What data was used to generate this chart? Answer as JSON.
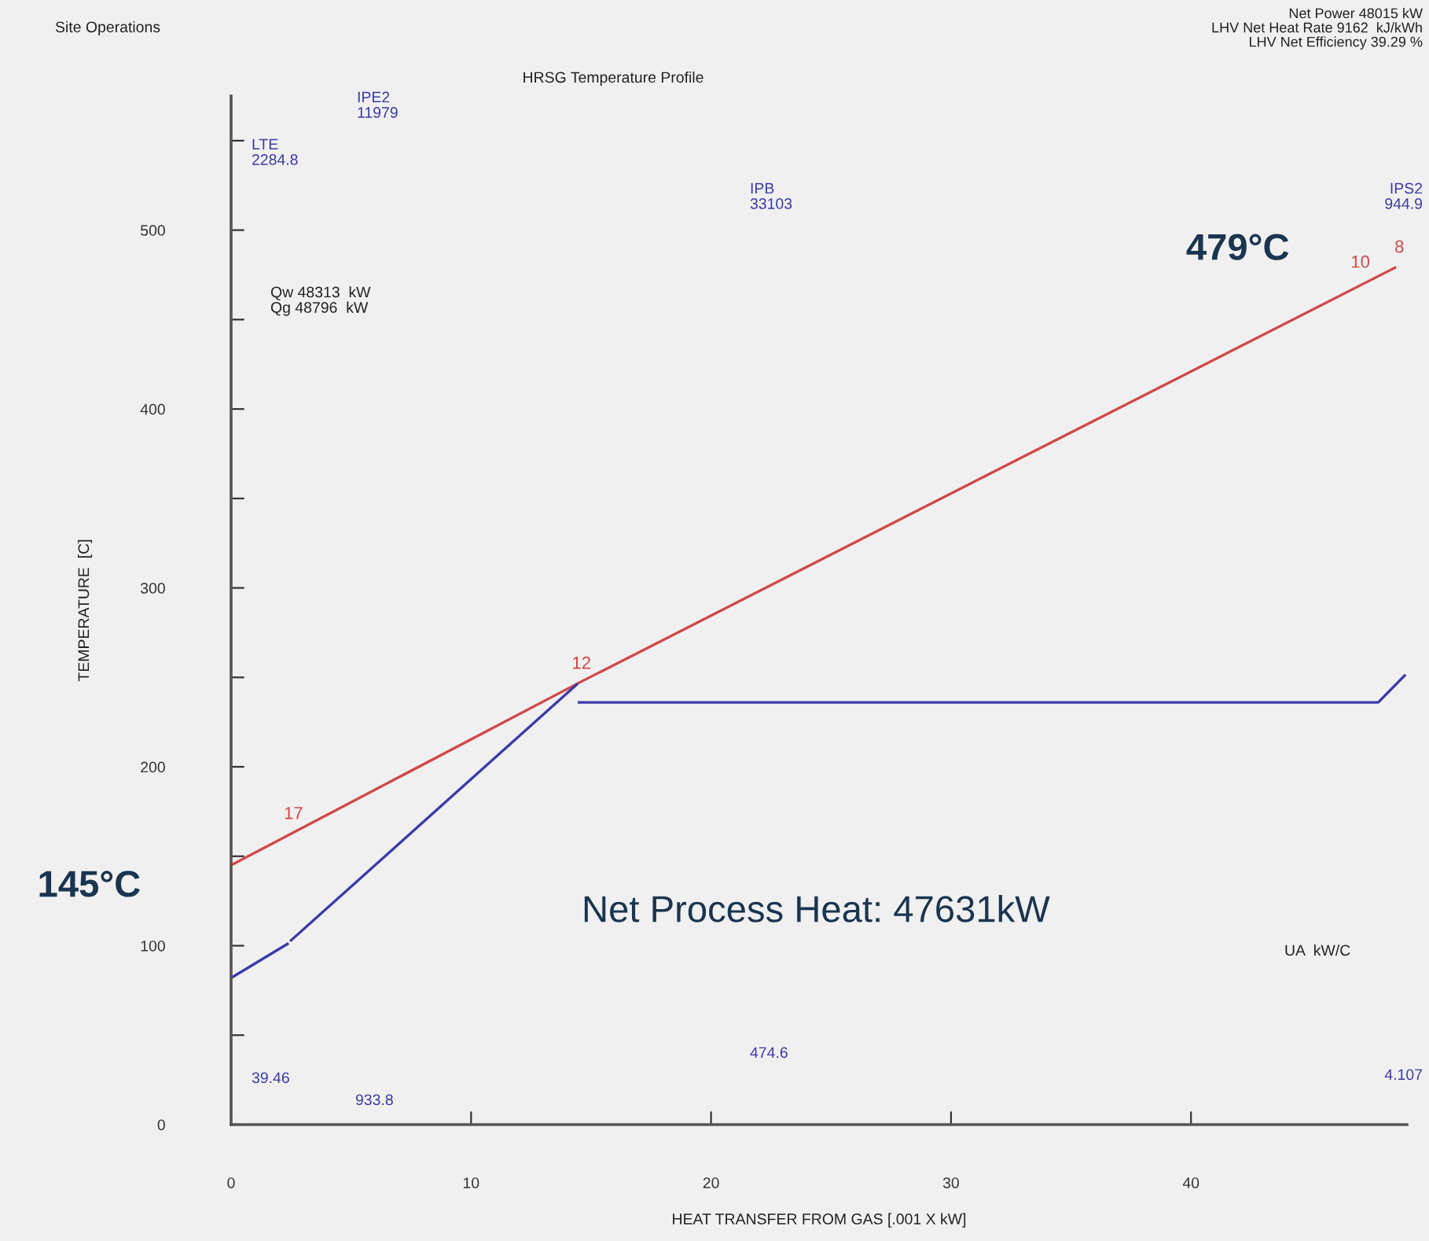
{
  "chart_data": {
    "type": "line",
    "title": "HRSG Temperature Profile",
    "xlabel": "HEAT TRANSFER FROM GAS [.001 X kW]",
    "ylabel": "TEMPERATURE  [C]",
    "series": [
      {
        "color": "#d04848",
        "x": [
          0,
          14.5,
          48.5
        ],
        "values": [
          145,
          247,
          479
        ]
      },
      {
        "color": "#3a3aa8",
        "x": [
          0,
          2.35,
          null,
          2.5,
          14.4,
          null,
          14.5,
          47.8,
          48.9
        ],
        "values": [
          82,
          101,
          null,
          103,
          246,
          null,
          236,
          236,
          251
        ]
      }
    ],
    "xlim": [
      0,
      49
    ],
    "ylim": [
      0,
      575
    ],
    "xticks": [
      0,
      10,
      20,
      30,
      40
    ],
    "yticks": [
      0,
      {
        "value": 50,
        "label": null
      },
      100,
      {
        "value": 150,
        "label": null
      },
      200,
      {
        "value": 250,
        "label": null
      },
      300,
      {
        "value": 350,
        "label": null
      },
      400,
      {
        "value": 450,
        "label": null
      },
      500,
      {
        "value": 550,
        "label": null
      }
    ],
    "annotations": [
      "Site Operations",
      "Net Power 48015 kW\nLHV Net Heat Rate 9162  kJ/kWh\nLHV Net Efficiency 39.29 %",
      "Qw 48313  kW\nQg 48796  kW",
      "UA  kW/C",
      "Net Process Heat: 47631kW",
      "LTE\n2284.8",
      "IPE2\n11979",
      "IPB\n33103",
      "IPS2\n944.9",
      "39.46",
      "933.8",
      "474.6",
      "4.107",
      {
        "text": "17",
        "x": 2.6,
        "y": 166
      },
      {
        "text": "12",
        "x": 14.6,
        "y": 250
      },
      {
        "text": "10",
        "x": 47.6,
        "y": 473
      },
      {
        "text": "8",
        "x": 48.5,
        "y": 479
      },
      {
        "text": "479°C",
        "x": 48.5,
        "y": 479
      },
      {
        "text": "145°C",
        "x": 0,
        "y": 145
      }
    ]
  }
}
